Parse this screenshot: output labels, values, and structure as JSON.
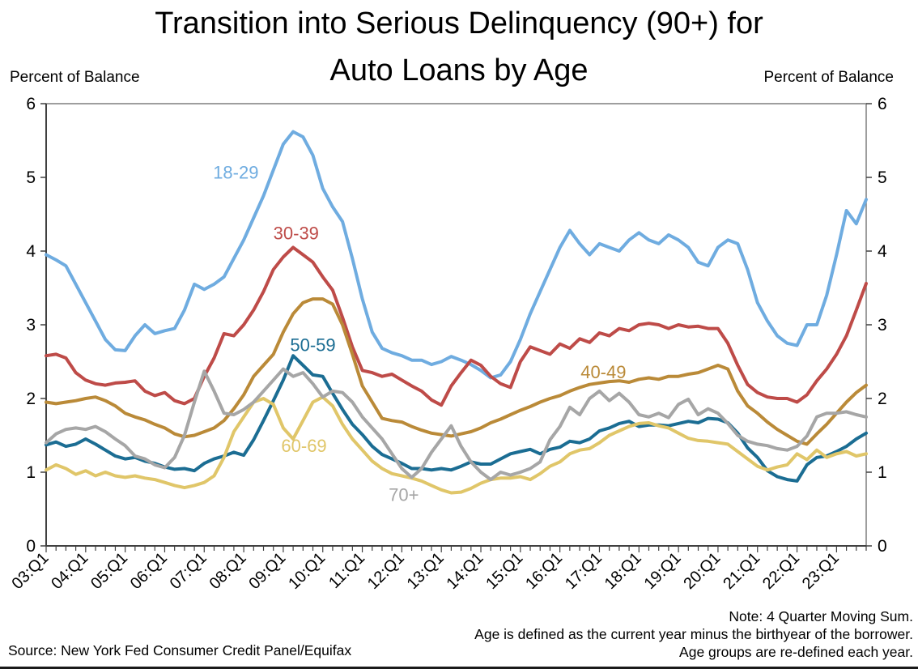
{
  "page": {
    "title_line1": "Transition into Serious Delinquency (90+) for",
    "title_line2": "Auto Loans by Age",
    "y_axis_label_left": "Percent of Balance",
    "y_axis_label_right": "Percent of Balance",
    "source": "Source: New York Fed Consumer Credit Panel/Equifax",
    "note_line1": "Note: 4 Quarter Moving Sum.",
    "note_line2": "Age is defined as the current year minus the birthyear of the borrower.",
    "note_line3": "Age groups are re-defined each year."
  },
  "chart_data": {
    "type": "line",
    "title": "Transition into Serious Delinquency (90+) for Auto Loans by Age",
    "xlabel": "",
    "ylabel": "Percent of Balance",
    "ylim": [
      0,
      6
    ],
    "yticks": [
      0,
      1,
      2,
      3,
      4,
      5,
      6
    ],
    "grid": false,
    "legend": "inline-labels-colored-as-series",
    "x_unit": "quarter",
    "x_start": "2003:Q1",
    "x_end": "2023:Q4",
    "x_tick_labels": [
      "03:Q1",
      "04:Q1",
      "05:Q1",
      "06:Q1",
      "07:Q1",
      "08:Q1",
      "09:Q1",
      "10:Q1",
      "11:Q1",
      "12:Q1",
      "13:Q1",
      "14:Q1",
      "15:Q1",
      "16:Q1",
      "17:Q1",
      "18:Q1",
      "19:Q1",
      "20:Q1",
      "21:Q1",
      "22:Q1",
      "23:Q1"
    ],
    "axis_color": "#7f7f7f",
    "series": [
      {
        "name": "18-29",
        "color": "#6FACE0",
        "label_x_index": 19.2,
        "label_y": 5.07,
        "values": [
          3.95,
          3.88,
          3.8,
          3.55,
          3.3,
          3.05,
          2.8,
          2.66,
          2.65,
          2.85,
          3.0,
          2.88,
          2.92,
          2.95,
          3.2,
          3.55,
          3.48,
          3.55,
          3.65,
          3.9,
          4.15,
          4.45,
          4.75,
          5.1,
          5.45,
          5.62,
          5.55,
          5.3,
          4.85,
          4.6,
          4.4,
          3.9,
          3.35,
          2.9,
          2.68,
          2.62,
          2.58,
          2.52,
          2.52,
          2.46,
          2.5,
          2.57,
          2.52,
          2.46,
          2.38,
          2.28,
          2.32,
          2.5,
          2.8,
          3.15,
          3.45,
          3.75,
          4.05,
          4.28,
          4.1,
          3.95,
          4.1,
          4.05,
          4.0,
          4.15,
          4.25,
          4.15,
          4.1,
          4.22,
          4.15,
          4.05,
          3.85,
          3.8,
          4.05,
          4.15,
          4.1,
          3.75,
          3.3,
          3.05,
          2.85,
          2.75,
          2.72,
          3.0,
          3.0,
          3.4,
          3.95,
          4.55,
          4.37,
          4.7
        ]
      },
      {
        "name": "30-39",
        "color": "#BE4B48",
        "label_x_index": 25.3,
        "label_y": 4.25,
        "values": [
          2.58,
          2.6,
          2.55,
          2.35,
          2.25,
          2.2,
          2.18,
          2.21,
          2.22,
          2.24,
          2.1,
          2.04,
          2.08,
          1.97,
          1.93,
          2.0,
          2.3,
          2.55,
          2.88,
          2.85,
          3.0,
          3.2,
          3.45,
          3.75,
          3.92,
          4.05,
          3.95,
          3.85,
          3.65,
          3.47,
          3.1,
          2.7,
          2.38,
          2.35,
          2.3,
          2.33,
          2.25,
          2.17,
          2.1,
          1.98,
          1.91,
          2.17,
          2.35,
          2.52,
          2.45,
          2.3,
          2.2,
          2.15,
          2.5,
          2.7,
          2.65,
          2.6,
          2.74,
          2.68,
          2.81,
          2.76,
          2.89,
          2.85,
          2.95,
          2.92,
          3.0,
          3.02,
          3.0,
          2.95,
          3.0,
          2.97,
          2.98,
          2.95,
          2.95,
          2.75,
          2.45,
          2.19,
          2.08,
          2.02,
          2.0,
          2.0,
          1.95,
          2.05,
          2.24,
          2.4,
          2.6,
          2.85,
          3.2,
          3.56
        ]
      },
      {
        "name": "40-49",
        "color": "#BA8A38",
        "label_x_index": 56.4,
        "label_y": 2.36,
        "values": [
          1.95,
          1.93,
          1.95,
          1.97,
          2.0,
          2.02,
          1.97,
          1.9,
          1.8,
          1.75,
          1.71,
          1.65,
          1.6,
          1.52,
          1.48,
          1.5,
          1.55,
          1.6,
          1.7,
          1.86,
          2.05,
          2.3,
          2.45,
          2.6,
          2.9,
          3.15,
          3.3,
          3.35,
          3.35,
          3.28,
          3.0,
          2.6,
          2.17,
          1.95,
          1.73,
          1.7,
          1.68,
          1.62,
          1.57,
          1.53,
          1.51,
          1.49,
          1.52,
          1.55,
          1.6,
          1.67,
          1.72,
          1.78,
          1.84,
          1.89,
          1.95,
          2.0,
          2.04,
          2.1,
          2.15,
          2.19,
          2.21,
          2.23,
          2.24,
          2.22,
          2.26,
          2.28,
          2.26,
          2.3,
          2.3,
          2.33,
          2.35,
          2.4,
          2.45,
          2.4,
          2.1,
          1.9,
          1.8,
          1.68,
          1.58,
          1.5,
          1.42,
          1.38,
          1.52,
          1.65,
          1.8,
          1.95,
          2.08,
          2.18
        ]
      },
      {
        "name": "50-59",
        "color": "#1B6D93",
        "label_x_index": 27.0,
        "label_y": 2.73,
        "values": [
          1.37,
          1.41,
          1.35,
          1.38,
          1.45,
          1.38,
          1.3,
          1.22,
          1.18,
          1.2,
          1.15,
          1.12,
          1.07,
          1.04,
          1.05,
          1.02,
          1.12,
          1.18,
          1.22,
          1.27,
          1.23,
          1.44,
          1.7,
          1.97,
          2.25,
          2.58,
          2.45,
          2.32,
          2.3,
          2.07,
          1.85,
          1.65,
          1.51,
          1.35,
          1.24,
          1.18,
          1.12,
          1.05,
          1.05,
          1.03,
          1.05,
          1.03,
          1.08,
          1.14,
          1.11,
          1.11,
          1.18,
          1.25,
          1.28,
          1.31,
          1.25,
          1.31,
          1.34,
          1.42,
          1.4,
          1.45,
          1.56,
          1.6,
          1.66,
          1.69,
          1.62,
          1.64,
          1.64,
          1.63,
          1.66,
          1.69,
          1.67,
          1.73,
          1.72,
          1.67,
          1.53,
          1.33,
          1.2,
          1.02,
          0.94,
          0.9,
          0.88,
          1.1,
          1.2,
          1.22,
          1.28,
          1.35,
          1.45,
          1.53
        ]
      },
      {
        "name": "60-69",
        "color": "#E0C669",
        "label_x_index": 26.1,
        "label_y": 1.36,
        "values": [
          1.03,
          1.1,
          1.05,
          0.97,
          1.02,
          0.95,
          1.0,
          0.95,
          0.93,
          0.95,
          0.92,
          0.9,
          0.86,
          0.82,
          0.79,
          0.82,
          0.86,
          0.95,
          1.2,
          1.55,
          1.75,
          1.95,
          2.0,
          1.92,
          1.6,
          1.45,
          1.7,
          1.95,
          2.02,
          1.9,
          1.65,
          1.45,
          1.3,
          1.15,
          1.05,
          0.98,
          0.95,
          0.92,
          0.88,
          0.82,
          0.76,
          0.72,
          0.73,
          0.78,
          0.85,
          0.9,
          0.92,
          0.92,
          0.94,
          0.9,
          0.98,
          1.08,
          1.14,
          1.25,
          1.3,
          1.32,
          1.4,
          1.5,
          1.56,
          1.62,
          1.66,
          1.67,
          1.63,
          1.6,
          1.53,
          1.46,
          1.43,
          1.42,
          1.4,
          1.38,
          1.28,
          1.18,
          1.08,
          1.03,
          1.07,
          1.1,
          1.25,
          1.17,
          1.3,
          1.2,
          1.25,
          1.28,
          1.22,
          1.25
        ]
      },
      {
        "name": "70+",
        "color": "#A6A6A6",
        "label_x_index": 36.2,
        "label_y": 0.7,
        "values": [
          1.4,
          1.52,
          1.58,
          1.6,
          1.58,
          1.62,
          1.55,
          1.45,
          1.36,
          1.22,
          1.18,
          1.1,
          1.06,
          1.2,
          1.5,
          1.95,
          2.37,
          2.1,
          1.8,
          1.78,
          1.85,
          1.95,
          2.1,
          2.25,
          2.4,
          2.3,
          2.35,
          2.2,
          2.02,
          2.1,
          2.08,
          1.95,
          1.75,
          1.6,
          1.45,
          1.25,
          1.05,
          0.93,
          1.05,
          1.27,
          1.45,
          1.63,
          1.35,
          1.14,
          1.0,
          0.9,
          1.0,
          0.96,
          1.0,
          1.05,
          1.14,
          1.44,
          1.62,
          1.88,
          1.78,
          2.0,
          2.1,
          1.97,
          2.07,
          1.95,
          1.78,
          1.75,
          1.8,
          1.74,
          1.92,
          1.99,
          1.78,
          1.86,
          1.8,
          1.66,
          1.5,
          1.42,
          1.38,
          1.36,
          1.32,
          1.3,
          1.35,
          1.49,
          1.75,
          1.8,
          1.8,
          1.82,
          1.78,
          1.75
        ]
      }
    ]
  }
}
